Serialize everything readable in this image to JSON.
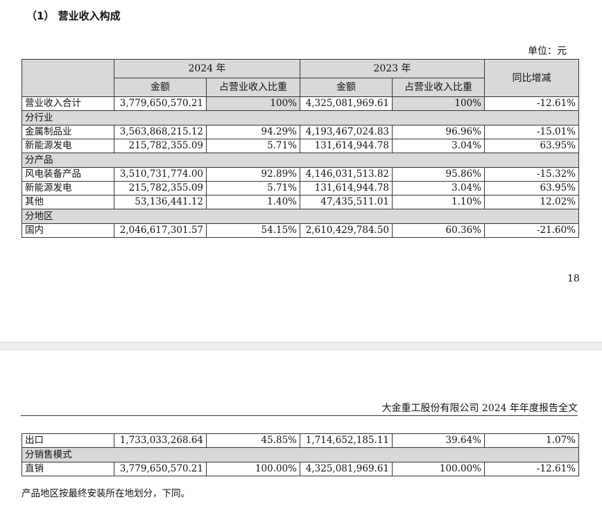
{
  "section_title": "（1） 营业收入构成",
  "unit": "单位：元",
  "table": {
    "headers": {
      "year_2024": "2024 年",
      "year_2023": "2023 年",
      "amount": "金额",
      "share": "占营业收入比重",
      "yoy": "同比增减"
    },
    "total": {
      "label": "营业收入合计",
      "amt24": "3,779,650,570.21",
      "pct24": "100%",
      "amt23": "4,325,081,969.61",
      "pct23": "100%",
      "yoy": "-12.61%"
    },
    "industry": {
      "label": "分行业",
      "rows": [
        {
          "label": "金属制品业",
          "amt24": "3,563,868,215.12",
          "pct24": "94.29%",
          "amt23": "4,193,467,024.83",
          "pct23": "96.96%",
          "yoy": "-15.01%"
        },
        {
          "label": "新能源发电",
          "amt24": "215,782,355.09",
          "pct24": "5.71%",
          "amt23": "131,614,944.78",
          "pct23": "3.04%",
          "yoy": "63.95%"
        }
      ]
    },
    "product": {
      "label": "分产品",
      "rows": [
        {
          "label": "风电装备产品",
          "amt24": "3,510,731,774.00",
          "pct24": "92.89%",
          "amt23": "4,146,031,513.82",
          "pct23": "95.86%",
          "yoy": "-15.32%"
        },
        {
          "label": "新能源发电",
          "amt24": "215,782,355.09",
          "pct24": "5.71%",
          "amt23": "131,614,944.78",
          "pct23": "3.04%",
          "yoy": "63.95%"
        },
        {
          "label": "其他",
          "amt24": "53,136,441.12",
          "pct24": "1.40%",
          "amt23": "47,435,511.01",
          "pct23": "1.10%",
          "yoy": "12.02%"
        }
      ]
    },
    "region": {
      "label": "分地区",
      "rows": [
        {
          "label": "国内",
          "amt24": "2,046,617,301.57",
          "pct24": "54.15%",
          "amt23": "2,610,429,784.50",
          "pct23": "60.36%",
          "yoy": "-21.60%"
        }
      ]
    }
  },
  "page_number": "18",
  "page2_header": "大金重工股份有限公司 2024 年年度报告全文",
  "table2": {
    "rows": [
      {
        "label": "出口",
        "amt24": "1,733,033,268.64",
        "pct24": "45.85%",
        "amt23": "1,714,652,185.11",
        "pct23": "39.64%",
        "yoy": "1.07%"
      }
    ],
    "sales_mode": {
      "label": "分销售模式",
      "rows": [
        {
          "label": "直销",
          "amt24": "3,779,650,570.21",
          "pct24": "100.00%",
          "amt23": "4,325,081,969.61",
          "pct23": "100.00%",
          "yoy": "-12.61%"
        }
      ]
    }
  },
  "footnote": "产品地区按最终安装所在地划分，下同。"
}
